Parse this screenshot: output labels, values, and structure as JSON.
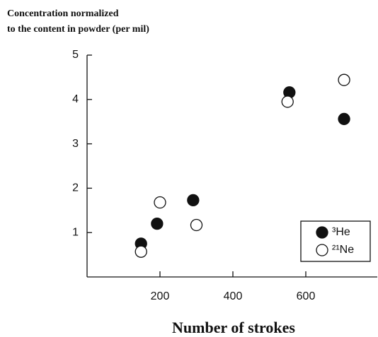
{
  "chart_data": {
    "type": "scatter",
    "ylabel": [
      "Concentration normalized",
      "to the content in powder (per mil)"
    ],
    "xlabel": "Number of strokes",
    "xlim": [
      0,
      800
    ],
    "xticks": [
      200,
      400,
      600
    ],
    "ylim": [
      0,
      5
    ],
    "yticks": [
      1,
      2,
      3,
      4,
      5
    ],
    "grid": false,
    "legend": "lower right",
    "series": [
      {
        "name": "³He",
        "color": "#111111",
        "filled": true,
        "x": [
          148,
          192,
          291,
          555,
          705
        ],
        "values": [
          0.75,
          1.2,
          1.73,
          4.16,
          3.56
        ]
      },
      {
        "name": "²¹Ne",
        "color": "#111111",
        "filled": false,
        "x": [
          148,
          200,
          300,
          550,
          705
        ],
        "values": [
          0.57,
          1.68,
          1.17,
          3.95,
          4.44
        ]
      }
    ]
  }
}
